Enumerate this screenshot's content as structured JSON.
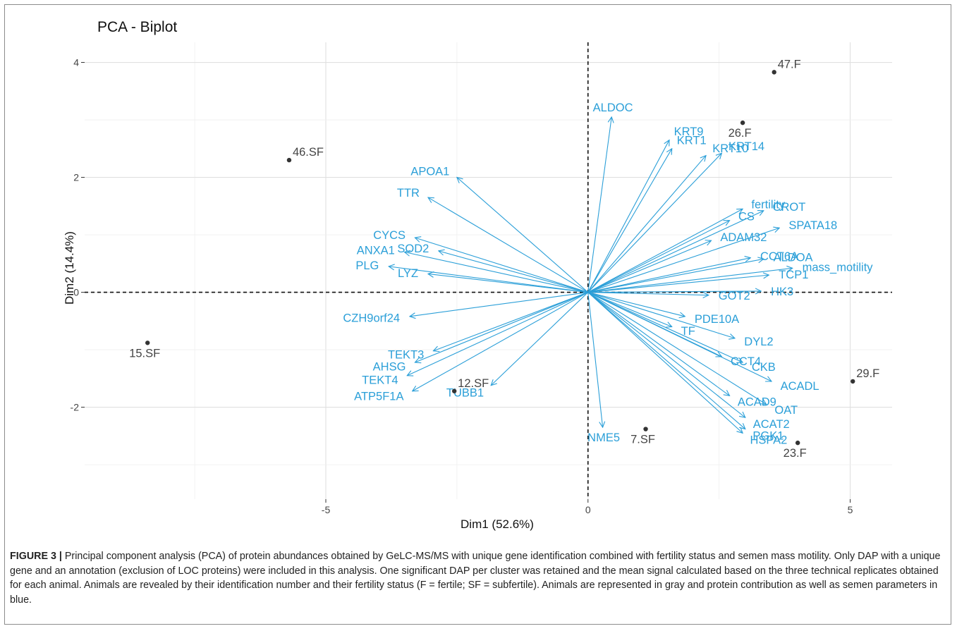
{
  "chart_data": {
    "type": "scatter",
    "title": "PCA - Biplot",
    "xlabel": "Dim1 (52.6%)",
    "ylabel": "Dim2 (14.4%)",
    "xlim": [
      -9.6,
      5.8
    ],
    "ylim": [
      -3.6,
      4.35
    ],
    "x_ticks": [
      -5,
      0,
      5
    ],
    "y_ticks": [
      -2,
      0,
      2,
      4
    ],
    "x_tick_labels": [
      "-5",
      "0",
      "5"
    ],
    "y_tick_labels": [
      "-2",
      "0",
      "2",
      "4"
    ],
    "grid": true,
    "reference_lines": {
      "x": 0,
      "y": 0,
      "style": "dashed"
    },
    "colors": {
      "individuals": "#333333",
      "variables": "#2b9fd8",
      "labels_individuals": "#444444"
    },
    "individuals": [
      {
        "label": "47.F",
        "x": 3.55,
        "y": 3.83
      },
      {
        "label": "26.F",
        "x": 2.95,
        "y": 2.95
      },
      {
        "label": "46.SF",
        "x": -5.7,
        "y": 2.3
      },
      {
        "label": "15.SF",
        "x": -8.4,
        "y": -0.88
      },
      {
        "label": "12.SF",
        "x": -2.55,
        "y": -1.72
      },
      {
        "label": "7.SF",
        "x": 1.1,
        "y": -2.38
      },
      {
        "label": "23.F",
        "x": 4.0,
        "y": -2.62
      },
      {
        "label": "29.F",
        "x": 5.05,
        "y": -1.55
      }
    ],
    "variables": [
      {
        "label": "ALDOC",
        "x": 0.45,
        "y": 3.05
      },
      {
        "label": "KRT9",
        "x": 1.55,
        "y": 2.65
      },
      {
        "label": "KRT1",
        "x": 1.6,
        "y": 2.5
      },
      {
        "label": "KRT14",
        "x": 2.55,
        "y": 2.42
      },
      {
        "label": "KRT10",
        "x": 2.25,
        "y": 2.38
      },
      {
        "label": "fertility",
        "x": 2.95,
        "y": 1.45
      },
      {
        "label": "CS",
        "x": 2.7,
        "y": 1.25
      },
      {
        "label": "CROT",
        "x": 3.35,
        "y": 1.42
      },
      {
        "label": "SPATA18",
        "x": 3.65,
        "y": 1.12
      },
      {
        "label": "ADAM32",
        "x": 2.35,
        "y": 0.9
      },
      {
        "label": "CCT6A",
        "x": 3.1,
        "y": 0.6
      },
      {
        "label": "ALDOA",
        "x": 3.35,
        "y": 0.58
      },
      {
        "label": "mass_motility",
        "x": 3.9,
        "y": 0.42
      },
      {
        "label": "TCP1",
        "x": 3.45,
        "y": 0.3
      },
      {
        "label": "HK3",
        "x": 3.3,
        "y": 0.02
      },
      {
        "label": "GOT2",
        "x": 2.3,
        "y": -0.05
      },
      {
        "label": "PDE10A",
        "x": 1.85,
        "y": -0.42
      },
      {
        "label": "TF",
        "x": 1.6,
        "y": -0.6
      },
      {
        "label": "DYL2",
        "x": 2.8,
        "y": -0.8
      },
      {
        "label": "CCT4",
        "x": 2.55,
        "y": -1.12
      },
      {
        "label": "CKB",
        "x": 2.95,
        "y": -1.22
      },
      {
        "label": "ACADL",
        "x": 3.5,
        "y": -1.55
      },
      {
        "label": "ACAD9",
        "x": 2.7,
        "y": -1.8
      },
      {
        "label": "OAT",
        "x": 3.4,
        "y": -1.95
      },
      {
        "label": "ACAT2",
        "x": 3.0,
        "y": -2.18
      },
      {
        "label": "PGK1",
        "x": 3.0,
        "y": -2.38
      },
      {
        "label": "HSPA2",
        "x": 2.95,
        "y": -2.45
      },
      {
        "label": "NME5",
        "x": 0.28,
        "y": -2.35
      },
      {
        "label": "APOA1",
        "x": -2.5,
        "y": 2.0
      },
      {
        "label": "TTR",
        "x": -3.05,
        "y": 1.65
      },
      {
        "label": "CYCS",
        "x": -3.3,
        "y": 0.95
      },
      {
        "label": "ANXA1",
        "x": -3.5,
        "y": 0.7
      },
      {
        "label": "SOD2",
        "x": -2.85,
        "y": 0.72
      },
      {
        "label": "PLG",
        "x": -3.8,
        "y": 0.45
      },
      {
        "label": "LYZ",
        "x": -3.05,
        "y": 0.32
      },
      {
        "label": "CZH9orf24",
        "x": -3.4,
        "y": -0.42
      },
      {
        "label": "TEKT3",
        "x": -2.95,
        "y": -1.02
      },
      {
        "label": "AHSG",
        "x": -3.3,
        "y": -1.22
      },
      {
        "label": "TEKT4",
        "x": -3.45,
        "y": -1.45
      },
      {
        "label": "ATP5F1A",
        "x": -3.35,
        "y": -1.72
      },
      {
        "label": "TUBB1",
        "x": -1.85,
        "y": -1.62
      }
    ]
  },
  "caption": {
    "label": "FIGURE 3 |",
    "text": " Principal component analysis (PCA) of protein abundances obtained by GeLC-MS/MS with unique gene identification combined with fertility status and semen mass motility. Only DAP with a unique gene and an annotation (exclusion of LOC proteins) were included in this analysis. One significant DAP per cluster was retained and the mean signal calculated based on the three technical replicates obtained for each animal. Animals are revealed by their identification number and their fertility status (F = fertile; SF = subfertile). Animals are represented in gray and protein contribution as well as semen parameters in blue."
  }
}
